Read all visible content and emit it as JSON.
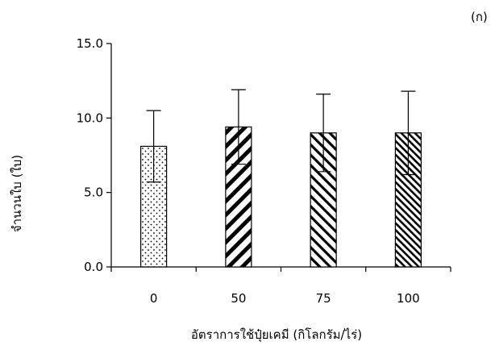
{
  "panel_label": "(ก)",
  "chart_data": {
    "type": "bar",
    "categories": [
      "0",
      "50",
      "75",
      "100"
    ],
    "values": [
      8.1,
      9.4,
      9.0,
      9.0
    ],
    "errors": [
      2.4,
      2.5,
      2.6,
      2.8
    ],
    "patterns": [
      "dots",
      "wide-diagonal",
      "medium-diagonal",
      "dense-diagonal"
    ],
    "xlabel": "อัตราการใช้ปุ๋ยเคมี (กิโลกรัม/ไร่)",
    "ylabel": "จำนวนใบ (ใบ)",
    "ylim": [
      0,
      15
    ],
    "yticks": [
      "0.0",
      "5.0",
      "10.0",
      "15.0"
    ],
    "grid": false,
    "colors": {
      "bar_fill": "#ffffff",
      "stroke": "#000000"
    }
  }
}
